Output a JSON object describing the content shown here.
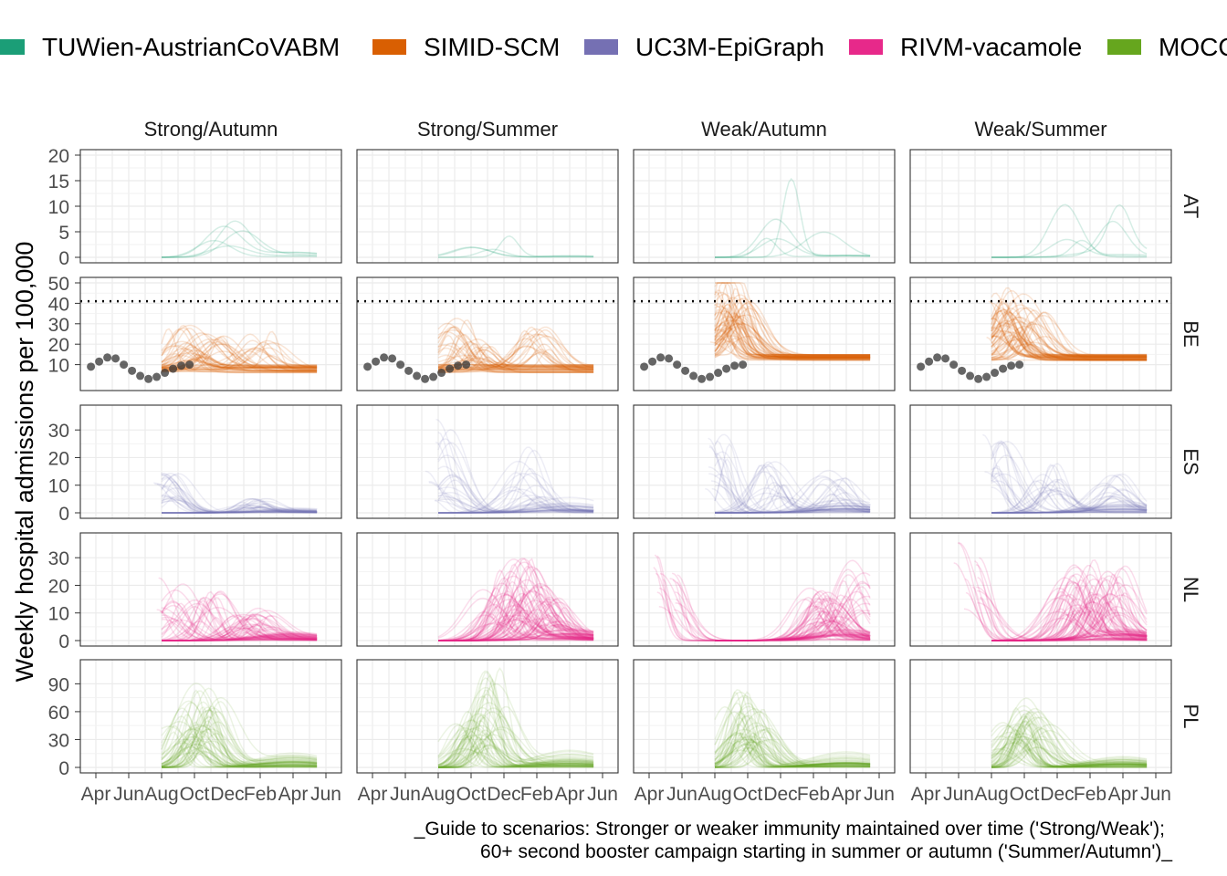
{
  "chart_data": {
    "type": "line",
    "ylabel": "Weekly hospital admissions per 100,000",
    "caption_lines": [
      "_Guide to scenarios: Stronger or weaker immunity maintained over time ('Strong/Weak');",
      "60+ second booster campaign starting in summer or autumn ('Summer/Autumn')_"
    ],
    "legend": [
      {
        "name": "TUWien-AustrianCoVABM",
        "color": "#1B9E77"
      },
      {
        "name": "SIMID-SCM",
        "color": "#D95F02"
      },
      {
        "name": "UC3M-EpiGraph",
        "color": "#7570B3"
      },
      {
        "name": "RIVM-vacamole",
        "color": "#E7298A"
      },
      {
        "name": "MOCOS",
        "color": "#66A61E"
      }
    ],
    "legend_placement": "top",
    "columns": [
      "Strong/Autumn",
      "Strong/Summer",
      "Weak/Autumn",
      "Weak/Summer"
    ],
    "x_tick_labels": [
      "Apr",
      "Jun",
      "Aug",
      "Oct",
      "Dec",
      "Feb",
      "Apr",
      "Jun"
    ],
    "x_ticks_month": [
      -3,
      -1,
      1,
      3,
      5,
      7,
      9,
      11
    ],
    "xlim_month": [
      -3.5,
      11.5
    ],
    "grid": true,
    "rows": [
      {
        "label": "AT",
        "color": "#1B9E77",
        "ylim": [
          0,
          20
        ],
        "yticks": [
          0,
          5,
          10,
          15,
          20
        ],
        "opacity": 0.18,
        "width": 1.5,
        "panels": {
          "Strong/Autumn": {
            "peaks": [
              [
                5.2,
                13
              ],
              [
                4.8,
                5
              ],
              [
                5.5,
                9
              ]
            ],
            "n": 5
          },
          "Strong/Summer": {
            "peaks": [
              [
                3.2,
                2
              ],
              [
                4.8,
                9.5
              ],
              [
                4.3,
                1.5
              ]
            ],
            "n": 4
          },
          "Weak/Autumn": {
            "peaks": [
              [
                5.1,
                18.5
              ],
              [
                4.5,
                6
              ],
              [
                7.8,
                8
              ]
            ],
            "n": 5
          },
          "Weak/Summer": {
            "peaks": [
              [
                5.4,
                11
              ],
              [
                8.3,
                10.5
              ],
              [
                6.5,
                3
              ]
            ],
            "n": 5
          }
        }
      },
      {
        "label": "BE",
        "color": "#D95F02",
        "ylim": [
          0,
          50
        ],
        "yticks": [
          10,
          20,
          30,
          40,
          50
        ],
        "opacity": 0.16,
        "width": 1.5,
        "hline": 41,
        "observed": [
          [
            -4.5,
            9
          ],
          [
            -4,
            11.5
          ],
          [
            -3.5,
            13.5
          ],
          [
            -3,
            13
          ],
          [
            -2.5,
            10
          ],
          [
            -2,
            7
          ],
          [
            -1.5,
            4.5
          ],
          [
            -1,
            3
          ],
          [
            -0.5,
            4
          ],
          [
            0,
            6
          ],
          [
            0.5,
            8
          ],
          [
            1,
            9.5
          ],
          [
            1.5,
            10
          ]
        ],
        "panels": {
          "Strong/Autumn": {
            "peaks": [
              [
                2,
                24
              ],
              [
                4,
                19
              ],
              [
                7,
                18
              ],
              [
                3,
                12
              ]
            ],
            "n": 50,
            "base": [
              6,
              10
            ]
          },
          "Strong/Summer": {
            "peaks": [
              [
                2,
                23
              ],
              [
                7,
                19
              ],
              [
                3.5,
                14
              ]
            ],
            "n": 50,
            "base": [
              6,
              10
            ]
          },
          "Weak/Autumn": {
            "peaks": [
              [
                1.8,
                47
              ],
              [
                2,
                32
              ],
              [
                2.5,
                28
              ],
              [
                1.5,
                25
              ]
            ],
            "n": 60,
            "base": [
              12,
              15
            ]
          },
          "Weak/Summer": {
            "peaks": [
              [
                1.5,
                36
              ],
              [
                2.5,
                30
              ],
              [
                3.5,
                23
              ],
              [
                1.8,
                28
              ]
            ],
            "n": 60,
            "base": [
              12,
              15
            ]
          }
        }
      },
      {
        "label": "ES",
        "color": "#7570B3",
        "ylim": [
          0,
          37
        ],
        "yticks": [
          0,
          10,
          20,
          30
        ],
        "opacity": 0.12,
        "width": 1.5,
        "panels": {
          "Strong/Autumn": {
            "peaks": [
              [
                1.3,
                14
              ],
              [
                6.7,
                5.5
              ]
            ],
            "n": 45
          },
          "Strong/Summer": {
            "peaks": [
              [
                1.3,
                14
              ],
              [
                7,
                6
              ],
              [
                1,
                35
              ],
              [
                6.2,
                24
              ]
            ],
            "n": 45
          },
          "Weak/Autumn": {
            "peaks": [
              [
                1.2,
                28
              ],
              [
                4.5,
                18
              ],
              [
                8.2,
                13
              ]
            ],
            "n": 50
          },
          "Weak/Summer": {
            "peaks": [
              [
                1.2,
                28
              ],
              [
                4.5,
                17
              ],
              [
                8.6,
                13
              ]
            ],
            "n": 50
          }
        }
      },
      {
        "label": "NL",
        "color": "#E7298A",
        "ylim": [
          0,
          37
        ],
        "yticks": [
          0,
          10,
          20,
          30
        ],
        "opacity": 0.16,
        "width": 1.5,
        "panels": {
          "Strong/Autumn": {
            "peaks": [
              [
                1.5,
                24
              ],
              [
                3.8,
                19
              ],
              [
                7,
                11
              ],
              [
                6,
                9
              ]
            ],
            "n": 60
          },
          "Strong/Summer": {
            "peaks": [
              [
                6.2,
                28
              ],
              [
                5.5,
                24
              ],
              [
                7,
                22
              ],
              [
                4.5,
                18
              ],
              [
                8,
                14
              ]
            ],
            "n": 80
          },
          "Weak/Autumn": {
            "peaks": [
              [
                -2,
                30
              ],
              [
                7.2,
                17
              ],
              [
                8,
                15
              ],
              [
                9.5,
                24
              ]
            ],
            "n": 70
          },
          "Weak/Summer": {
            "peaks": [
              [
                -0.5,
                35
              ],
              [
                7.5,
                30
              ],
              [
                6.5,
                26
              ],
              [
                8.5,
                24
              ],
              [
                5.5,
                22
              ]
            ],
            "n": 80
          }
        }
      },
      {
        "label": "PL",
        "color": "#66A61E",
        "ylim": [
          0,
          110
        ],
        "yticks": [
          0,
          30,
          60,
          90
        ],
        "opacity": 0.12,
        "width": 1.5,
        "panels": {
          "Strong/Autumn": {
            "peaks": [
              [
                3.8,
                100
              ],
              [
                2.6,
                68
              ],
              [
                3.3,
                55
              ],
              [
                2.2,
                45
              ],
              [
                3.8,
                80
              ]
            ],
            "n": 55
          },
          "Strong/Summer": {
            "peaks": [
              [
                4.6,
                108
              ],
              [
                3.5,
                60
              ],
              [
                2.8,
                50
              ],
              [
                4.2,
                75
              ]
            ],
            "n": 55
          },
          "Weak/Autumn": {
            "peaks": [
              [
                2.3,
                82
              ],
              [
                3.3,
                76
              ],
              [
                2.8,
                60
              ],
              [
                3.6,
                45
              ]
            ],
            "n": 55
          },
          "Weak/Summer": {
            "peaks": [
              [
                2.6,
                70
              ],
              [
                3.9,
                89
              ],
              [
                3.2,
                60
              ],
              [
                2.2,
                48
              ]
            ],
            "n": 55
          }
        }
      }
    ]
  }
}
